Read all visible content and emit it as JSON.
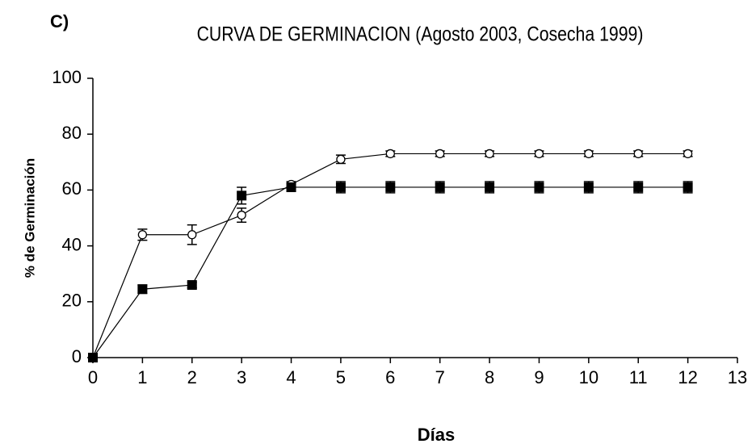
{
  "chart_data": {
    "type": "line",
    "panel_label": "C)",
    "title": "CURVA DE GERMINACION (Agosto 2003, Cosecha 1999)",
    "xlabel": "Días",
    "ylabel": "% de Germinación",
    "x": [
      0,
      1,
      2,
      3,
      4,
      5,
      6,
      7,
      8,
      9,
      10,
      11,
      12
    ],
    "series": [
      {
        "color": "#000000",
        "marker": "circle-open",
        "values": [
          0,
          44,
          44,
          51,
          62,
          71,
          73,
          73,
          73,
          73,
          73,
          73,
          73
        ],
        "errors": [
          0,
          2,
          3.5,
          2.5,
          1,
          1.5,
          1,
          1,
          1,
          1,
          1,
          1,
          1
        ]
      },
      {
        "color": "#000000",
        "marker": "square",
        "values": [
          0,
          24.5,
          26,
          58,
          61,
          61,
          61,
          61,
          61,
          61,
          61,
          61,
          61
        ],
        "errors": [
          0,
          1.5,
          1,
          3,
          1.5,
          2,
          2,
          2,
          2,
          2,
          2,
          2,
          2
        ]
      }
    ],
    "xlim": [
      0,
      13
    ],
    "xticks": [
      0,
      1,
      2,
      3,
      4,
      5,
      6,
      7,
      8,
      9,
      10,
      11,
      12,
      13
    ],
    "ylim": [
      0,
      100
    ],
    "yticks": [
      0,
      20,
      40,
      60,
      80,
      100
    ],
    "grid": false
  }
}
